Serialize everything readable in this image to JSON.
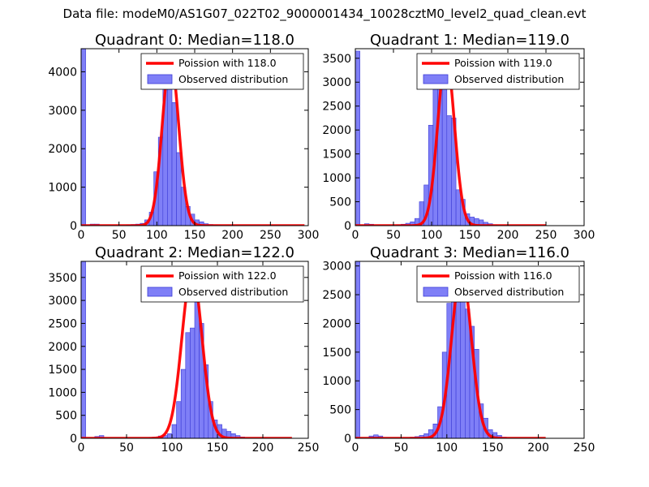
{
  "figure": {
    "suptitle": "Data file: modeM0/AS1G07_022T02_9000001434_10028cztM0_level2_quad_clean.evt",
    "colors": {
      "bars": "#7f7ff7",
      "bar_edge": "#3b3bd6",
      "curve": "#ff0000",
      "axes": "#000000"
    }
  },
  "chart_data": [
    {
      "type": "bar",
      "title": "Quadrant 0: Median=118.0",
      "xlim": [
        0,
        300
      ],
      "ylim": [
        0,
        4600
      ],
      "xticks": [
        0,
        50,
        100,
        150,
        200,
        250,
        300
      ],
      "yticks": [
        0,
        1000,
        2000,
        3000,
        4000
      ],
      "legend": [
        "Poission with 118.0",
        "Observed distribution"
      ],
      "legend_position": "top-right",
      "bin_width": 6,
      "series": [
        {
          "name": "Observed distribution",
          "type": "bar",
          "x": [
            0,
            12,
            18,
            60,
            66,
            72,
            78,
            84,
            90,
            96,
            102,
            108,
            114,
            120,
            126,
            132,
            138,
            144,
            150,
            156,
            162,
            168,
            174,
            180
          ],
          "values": [
            4600,
            40,
            40,
            20,
            30,
            40,
            60,
            150,
            350,
            1400,
            2300,
            3700,
            4000,
            3200,
            1900,
            1000,
            500,
            300,
            150,
            100,
            50,
            30,
            20,
            10
          ]
        },
        {
          "name": "Poission with 118.0",
          "type": "line",
          "mean": 118,
          "peak": 4330,
          "x_range": [
            0,
            295
          ]
        }
      ]
    },
    {
      "type": "bar",
      "title": "Quadrant 1: Median=119.0",
      "xlim": [
        0,
        300
      ],
      "ylim": [
        0,
        3700
      ],
      "xticks": [
        0,
        50,
        100,
        150,
        200,
        250,
        300
      ],
      "yticks": [
        0,
        500,
        1000,
        1500,
        2000,
        2500,
        3000,
        3500
      ],
      "legend": [
        "Poission with 119.0",
        "Observed distribution"
      ],
      "legend_position": "top-right",
      "bin_width": 6,
      "series": [
        {
          "name": "Observed distribution",
          "type": "bar",
          "x": [
            0,
            12,
            18,
            54,
            60,
            66,
            72,
            78,
            84,
            90,
            96,
            102,
            108,
            114,
            120,
            126,
            132,
            138,
            144,
            150,
            156,
            162,
            168,
            174,
            180
          ],
          "values": [
            3650,
            40,
            30,
            20,
            30,
            50,
            80,
            150,
            500,
            850,
            2100,
            3200,
            3500,
            3200,
            2300,
            2250,
            750,
            550,
            250,
            180,
            150,
            120,
            70,
            40,
            20
          ]
        },
        {
          "name": "Poission with 119.0",
          "type": "line",
          "mean": 119,
          "peak": 3530,
          "x_range": [
            0,
            250
          ]
        }
      ]
    },
    {
      "type": "bar",
      "title": "Quadrant 2: Median=122.0",
      "xlim": [
        0,
        250
      ],
      "ylim": [
        0,
        3850
      ],
      "xticks": [
        0,
        50,
        100,
        150,
        200,
        250
      ],
      "yticks": [
        0,
        500,
        1000,
        1500,
        2000,
        2500,
        3000,
        3500
      ],
      "legend": [
        "Poission with 122.0",
        "Observed distribution"
      ],
      "legend_position": "top-right",
      "bin_width": 5,
      "series": [
        {
          "name": "Observed distribution",
          "type": "bar",
          "x": [
            0,
            15,
            20,
            75,
            80,
            85,
            90,
            95,
            100,
            105,
            110,
            115,
            120,
            125,
            130,
            135,
            140,
            145,
            150,
            155,
            160,
            165,
            170,
            175
          ],
          "values": [
            3850,
            40,
            60,
            20,
            30,
            50,
            60,
            100,
            300,
            800,
            1500,
            2300,
            2400,
            3700,
            2500,
            1600,
            800,
            400,
            300,
            200,
            150,
            100,
            60,
            30
          ]
        },
        {
          "name": "Poission with 122.0",
          "type": "line",
          "mean": 122,
          "peak": 3630,
          "x_range": [
            0,
            232
          ]
        }
      ]
    },
    {
      "type": "bar",
      "title": "Quadrant 3: Median=116.0",
      "xlim": [
        0,
        250
      ],
      "ylim": [
        0,
        3080
      ],
      "xticks": [
        0,
        50,
        100,
        150,
        200,
        250
      ],
      "yticks": [
        0,
        500,
        1000,
        1500,
        2000,
        2500,
        3000
      ],
      "legend": [
        "Poission with 116.0",
        "Observed distribution"
      ],
      "legend_position": "top-right",
      "bin_width": 5,
      "series": [
        {
          "name": "Observed distribution",
          "type": "bar",
          "x": [
            0,
            15,
            20,
            25,
            60,
            65,
            70,
            75,
            80,
            85,
            90,
            95,
            100,
            105,
            110,
            115,
            120,
            125,
            130,
            135,
            140,
            145,
            150,
            155,
            160
          ],
          "values": [
            3080,
            40,
            60,
            40,
            20,
            30,
            50,
            80,
            150,
            250,
            550,
            1500,
            2350,
            2850,
            2950,
            2850,
            2250,
            1950,
            1550,
            600,
            350,
            150,
            100,
            50,
            20
          ]
        },
        {
          "name": "Poission with 116.0",
          "type": "line",
          "mean": 116,
          "peak": 2900,
          "x_range": [
            0,
            208
          ]
        }
      ]
    }
  ]
}
